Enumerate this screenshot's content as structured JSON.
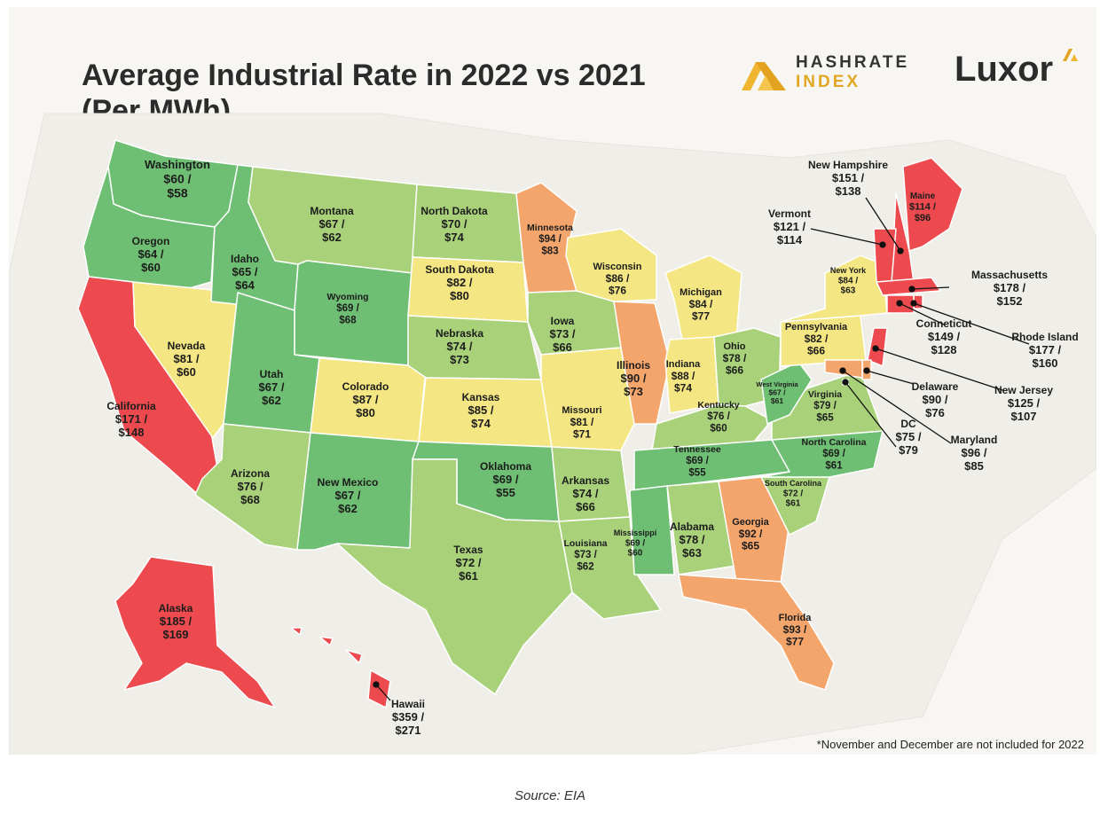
{
  "title_line1": "Average Industrial Rate in 2022 vs 2021",
  "title_line2": "(Per MWh)",
  "brand": {
    "hashrate_line1": "HASHRATE",
    "hashrate_line2": "INDEX",
    "luxor": "Luxor"
  },
  "footnote": "*November and December are not included for 2022",
  "source": "Source: EIA",
  "colors": {
    "green": "#6ebf73",
    "lightgreen": "#a8d17a",
    "yellow": "#f4e682",
    "orange": "#f4a56b",
    "red": "#ec4a4e"
  },
  "states": [
    {
      "id": "washington",
      "name": "Washington",
      "v2022": "$60 /",
      "v2021": "$58",
      "category": "green"
    },
    {
      "id": "oregon",
      "name": "Oregon",
      "v2022": "$64 /",
      "v2021": "$60",
      "category": "green"
    },
    {
      "id": "california",
      "name": "California",
      "v2022": "$171 /",
      "v2021": "$148",
      "category": "red"
    },
    {
      "id": "nevada",
      "name": "Nevada",
      "v2022": "$81 /",
      "v2021": "$60",
      "category": "yellow"
    },
    {
      "id": "idaho",
      "name": "Idaho",
      "v2022": "$65 /",
      "v2021": "$64",
      "category": "green"
    },
    {
      "id": "montana",
      "name": "Montana",
      "v2022": "$67 /",
      "v2021": "$62",
      "category": "lightgreen"
    },
    {
      "id": "wyoming",
      "name": "Wyoming",
      "v2022": "$69 /",
      "v2021": "$68",
      "category": "green"
    },
    {
      "id": "utah",
      "name": "Utah",
      "v2022": "$67 /",
      "v2021": "$62",
      "category": "green"
    },
    {
      "id": "arizona",
      "name": "Arizona",
      "v2022": "$76 /",
      "v2021": "$68",
      "category": "lightgreen"
    },
    {
      "id": "colorado",
      "name": "Colorado",
      "v2022": "$87 /",
      "v2021": "$80",
      "category": "yellow"
    },
    {
      "id": "new-mexico",
      "name": "New Mexico",
      "v2022": "$67 /",
      "v2021": "$62",
      "category": "green"
    },
    {
      "id": "north-dakota",
      "name": "North Dakota",
      "v2022": "$70 /",
      "v2021": "$74",
      "category": "lightgreen"
    },
    {
      "id": "south-dakota",
      "name": "South Dakota",
      "v2022": "$82 /",
      "v2021": "$80",
      "category": "yellow"
    },
    {
      "id": "nebraska",
      "name": "Nebraska",
      "v2022": "$74 /",
      "v2021": "$73",
      "category": "lightgreen"
    },
    {
      "id": "kansas",
      "name": "Kansas",
      "v2022": "$85 /",
      "v2021": "$74",
      "category": "yellow"
    },
    {
      "id": "oklahoma",
      "name": "Oklahoma",
      "v2022": "$69 /",
      "v2021": "$55",
      "category": "green"
    },
    {
      "id": "texas",
      "name": "Texas",
      "v2022": "$72 /",
      "v2021": "$61",
      "category": "lightgreen"
    },
    {
      "id": "minnesota",
      "name": "Minnesota",
      "v2022": "$94 /",
      "v2021": "$83",
      "category": "orange"
    },
    {
      "id": "iowa",
      "name": "Iowa",
      "v2022": "$73 /",
      "v2021": "$66",
      "category": "lightgreen"
    },
    {
      "id": "missouri",
      "name": "Missouri",
      "v2022": "$81 /",
      "v2021": "$71",
      "category": "yellow"
    },
    {
      "id": "arkansas",
      "name": "Arkansas",
      "v2022": "$74 /",
      "v2021": "$66",
      "category": "lightgreen"
    },
    {
      "id": "louisiana",
      "name": "Louisiana",
      "v2022": "$73 /",
      "v2021": "$62",
      "category": "lightgreen"
    },
    {
      "id": "wisconsin",
      "name": "Wisconsin",
      "v2022": "$86 /",
      "v2021": "$76",
      "category": "yellow"
    },
    {
      "id": "illinois",
      "name": "Illinois",
      "v2022": "$90 /",
      "v2021": "$73",
      "category": "orange"
    },
    {
      "id": "michigan",
      "name": "Michigan",
      "v2022": "$84 /",
      "v2021": "$77",
      "category": "yellow"
    },
    {
      "id": "indiana",
      "name": "Indiana",
      "v2022": "$88 /",
      "v2021": "$74",
      "category": "yellow"
    },
    {
      "id": "ohio",
      "name": "Ohio",
      "v2022": "$78 /",
      "v2021": "$66",
      "category": "lightgreen"
    },
    {
      "id": "kentucky",
      "name": "Kentucky",
      "v2022": "$76 /",
      "v2021": "$60",
      "category": "lightgreen"
    },
    {
      "id": "tennessee",
      "name": "Tennessee",
      "v2022": "$69 /",
      "v2021": "$55",
      "category": "green"
    },
    {
      "id": "mississippi",
      "name": "Mississippi",
      "v2022": "$69 /",
      "v2021": "$60",
      "category": "green"
    },
    {
      "id": "alabama",
      "name": "Alabama",
      "v2022": "$78 /",
      "v2021": "$63",
      "category": "lightgreen"
    },
    {
      "id": "georgia",
      "name": "Georgia",
      "v2022": "$92 /",
      "v2021": "$65",
      "category": "orange"
    },
    {
      "id": "florida",
      "name": "Florida",
      "v2022": "$93 /",
      "v2021": "$77",
      "category": "orange"
    },
    {
      "id": "south-carolina",
      "name": "South Carolina",
      "v2022": "$72 /",
      "v2021": "$61",
      "category": "lightgreen"
    },
    {
      "id": "north-carolina",
      "name": "North Carolina",
      "v2022": "$69 /",
      "v2021": "$61",
      "category": "green"
    },
    {
      "id": "virginia",
      "name": "Virginia",
      "v2022": "$79 /",
      "v2021": "$65",
      "category": "lightgreen"
    },
    {
      "id": "west-virginia",
      "name": "West Virginia",
      "v2022": "$67 /",
      "v2021": "$61",
      "category": "green"
    },
    {
      "id": "pennsylvania",
      "name": "Pennsylvania",
      "v2022": "$82 /",
      "v2021": "$66",
      "category": "yellow"
    },
    {
      "id": "new-york",
      "name": "New York",
      "v2022": "$84 /",
      "v2021": "$63",
      "category": "yellow"
    },
    {
      "id": "maine",
      "name": "Maine",
      "v2022": "$114 /",
      "v2021": "$96",
      "category": "red"
    },
    {
      "id": "new-hampshire",
      "name": "New Hampshire",
      "v2022": "$151 /",
      "v2021": "$138",
      "category": "red"
    },
    {
      "id": "vermont",
      "name": "Vermont",
      "v2022": "$121 /",
      "v2021": "$114",
      "category": "red"
    },
    {
      "id": "massachusetts",
      "name": "Massachusetts",
      "v2022": "$178 /",
      "v2021": "$152",
      "category": "red"
    },
    {
      "id": "rhode-island",
      "name": "Rhode Island",
      "v2022": "$177 /",
      "v2021": "$160",
      "category": "red"
    },
    {
      "id": "connecticut",
      "name": "Conneticut",
      "v2022": "$149 /",
      "v2021": "$128",
      "category": "red"
    },
    {
      "id": "new-jersey",
      "name": "New Jersey",
      "v2022": "$125 /",
      "v2021": "$107",
      "category": "red"
    },
    {
      "id": "delaware",
      "name": "Delaware",
      "v2022": "$90 /",
      "v2021": "$76",
      "category": "orange"
    },
    {
      "id": "maryland",
      "name": "Maryland",
      "v2022": "$96 /",
      "v2021": "$85",
      "category": "orange"
    },
    {
      "id": "dc",
      "name": "DC",
      "v2022": "$75 /",
      "v2021": "$79",
      "category": "lightgreen"
    },
    {
      "id": "alaska",
      "name": "Alaska",
      "v2022": "$185 /",
      "v2021": "$169",
      "category": "red"
    },
    {
      "id": "hawaii",
      "name": "Hawaii",
      "v2022": "$359 /",
      "v2021": "$271",
      "category": "red"
    }
  ]
}
